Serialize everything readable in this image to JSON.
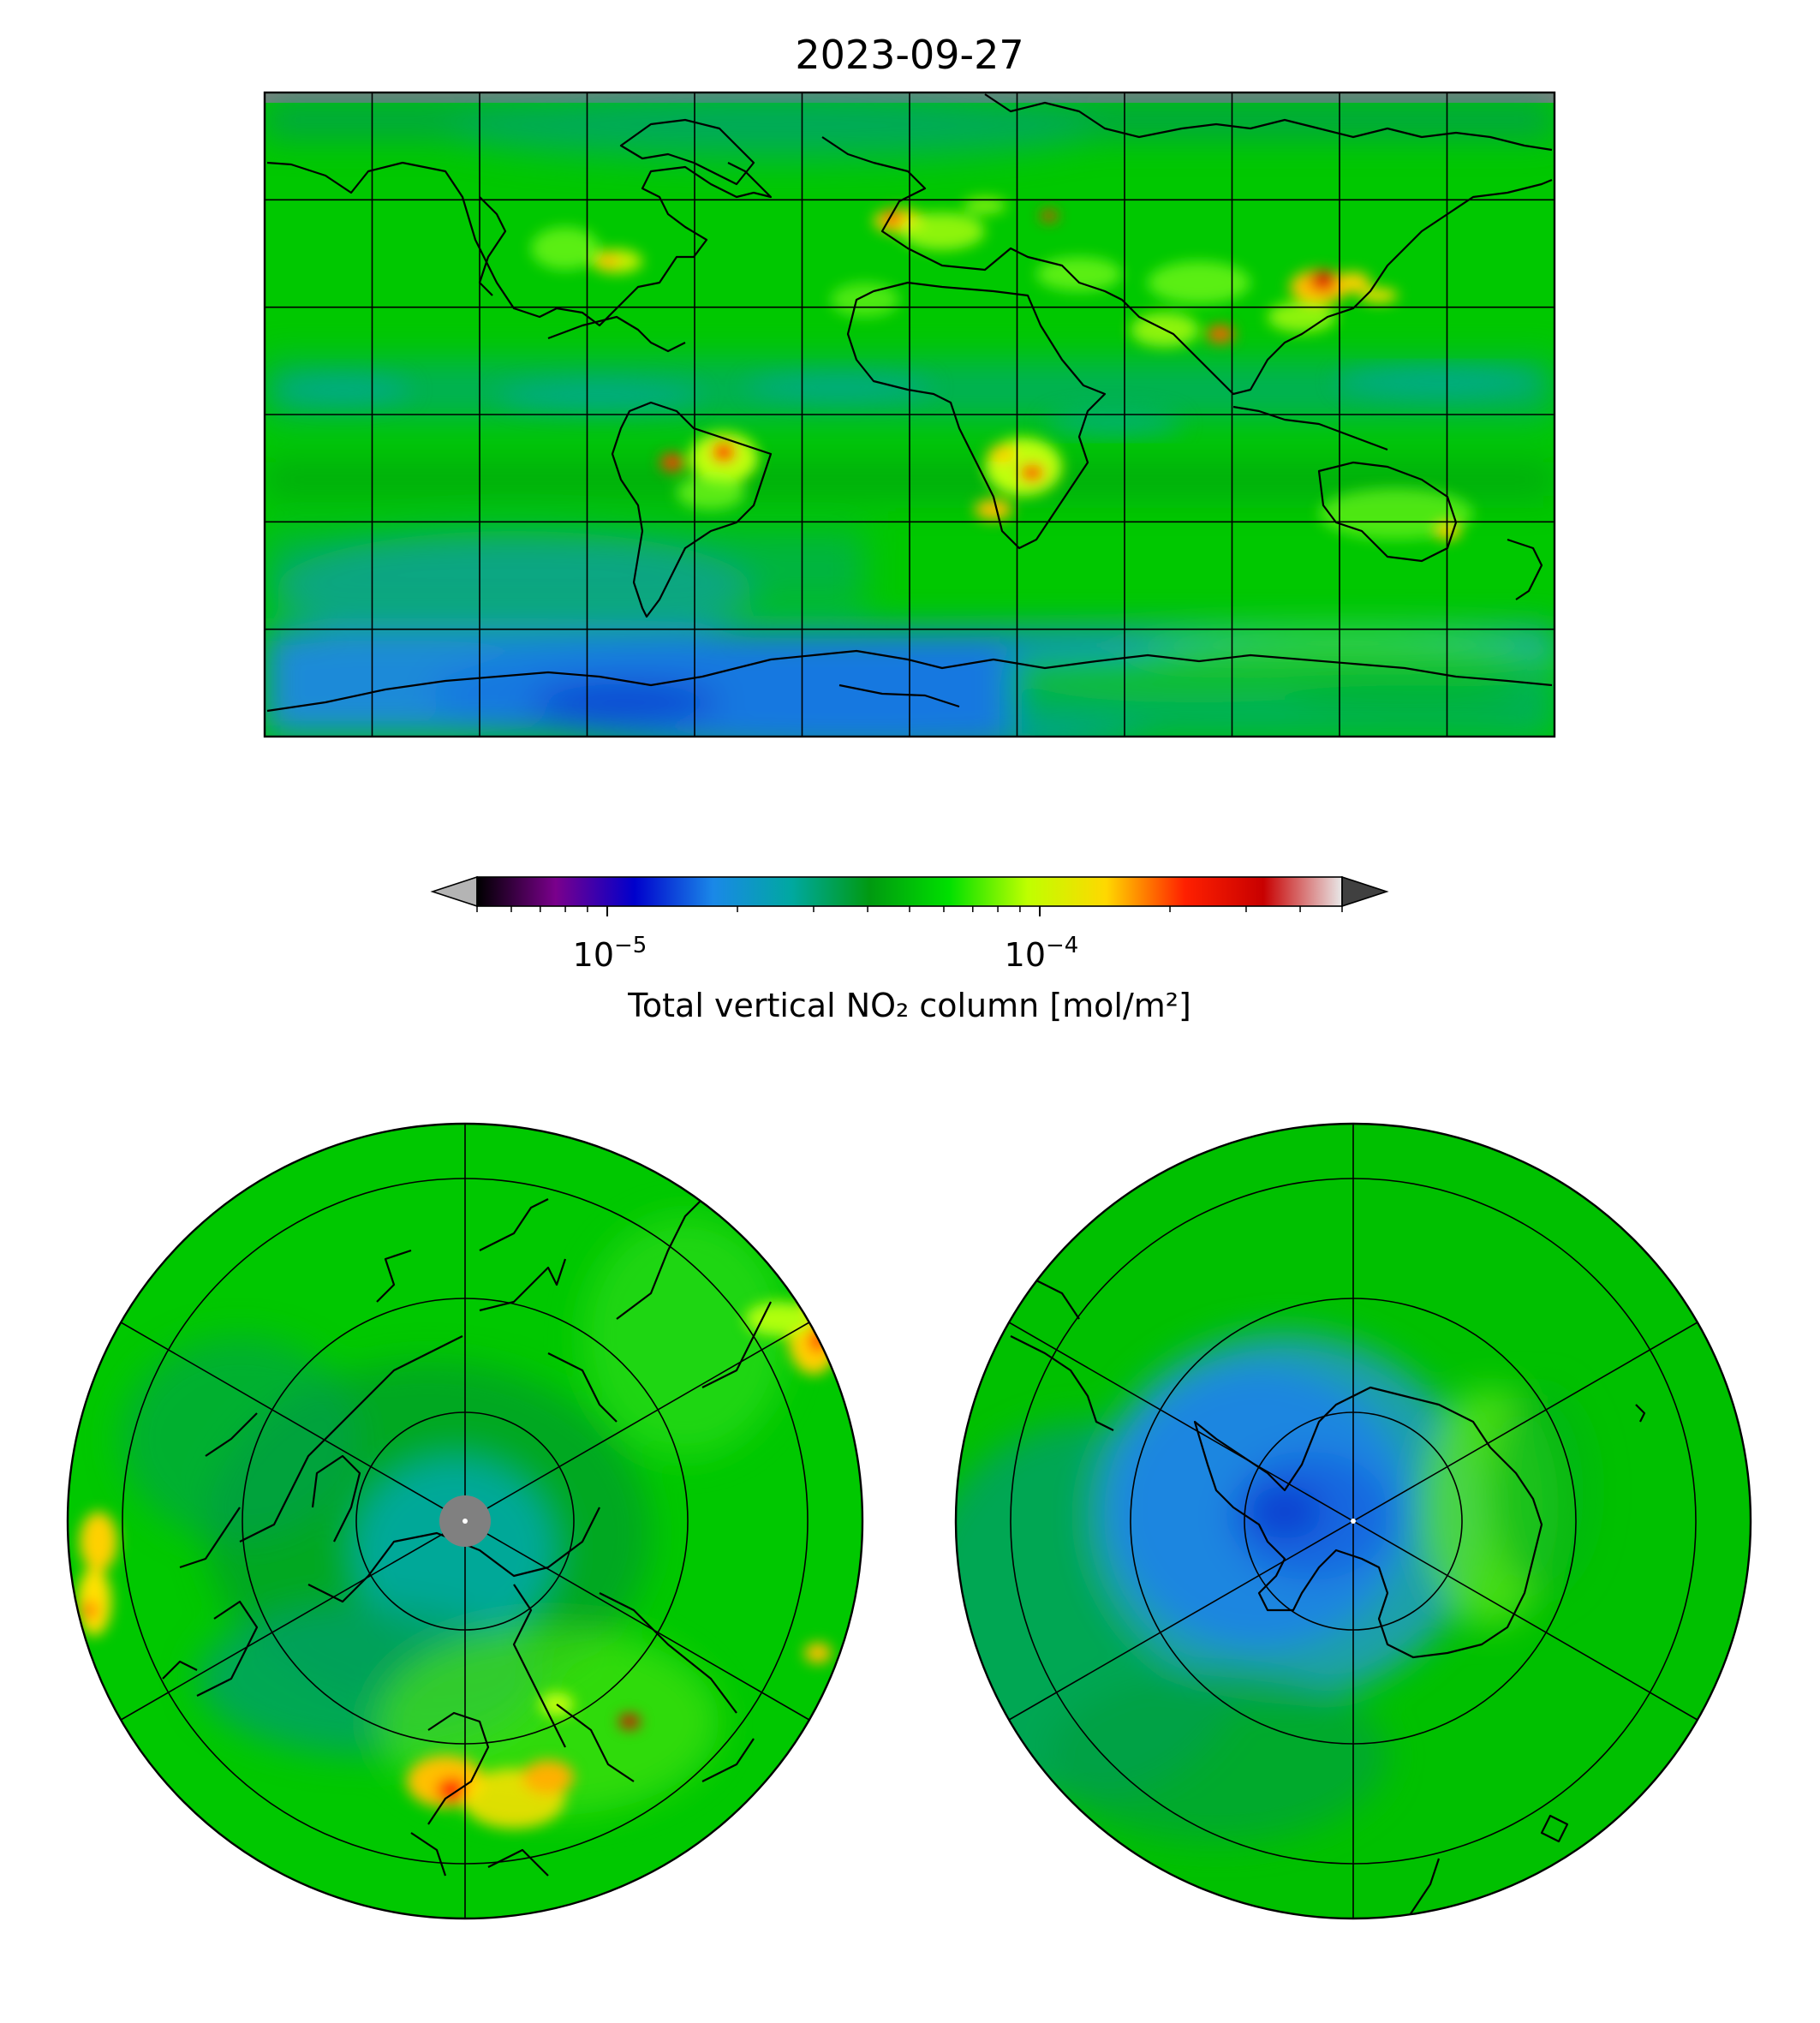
{
  "title": "2023-09-27",
  "colorbar": {
    "label": "Total vertical NO₂ column [mol/m²]",
    "scale": "log",
    "range": [
      5e-06,
      0.0005
    ],
    "extend": "both",
    "ticks": [
      {
        "value": 1e-05,
        "base": "10",
        "exponent": "−5"
      },
      {
        "value": 0.0001,
        "base": "10",
        "exponent": "−4"
      }
    ],
    "colormap_stops": [
      "#000000",
      "#7a008c",
      "#0000cc",
      "#1a88e8",
      "#00a8a0",
      "#009a10",
      "#00e000",
      "#bfff00",
      "#ffd800",
      "#ff2000",
      "#c80000",
      "#e8e8e8"
    ],
    "under_color": "#b4b4b4",
    "over_color": "#404040"
  },
  "panels": {
    "global": {
      "projection": "equirectangular",
      "missing_color": "#808080"
    },
    "north_polar": {
      "projection": "north-polar-stereographic",
      "missing_color": "#808080"
    },
    "south_polar": {
      "projection": "south-polar-stereographic"
    }
  },
  "colors": {
    "background_field": "#00cc00",
    "low_column": "#1a7fe0",
    "high_column": "#ff1a00",
    "missing": "#808080"
  }
}
